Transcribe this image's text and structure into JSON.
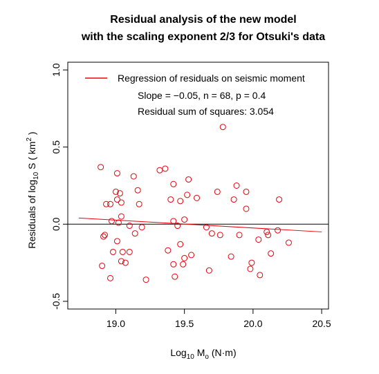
{
  "chart_data": {
    "type": "scatter",
    "title_lines": [
      "Residual analysis of the new model",
      "with the scaling exponent 2/3 for Otsuki's data"
    ],
    "xlabel": {
      "base": "Log",
      "sub": "10",
      "mid": " M",
      "sub2": "o",
      "units": " (N·m)"
    },
    "ylabel": {
      "pre": "Residuals of log",
      "sub": "10",
      "mid": " S ( km",
      "sup": "2",
      "post": " )"
    },
    "xlim": [
      18.65,
      20.55
    ],
    "ylim": [
      -0.55,
      1.05
    ],
    "xticks": [
      19.0,
      19.5,
      20.0,
      20.5
    ],
    "xtick_labels": [
      "19.0",
      "19.5",
      "20.0",
      "20.5"
    ],
    "yticks": [
      -0.5,
      0.0,
      0.5,
      1.0
    ],
    "ytick_labels": [
      "-0.5",
      "0.0",
      "0.5",
      "1.0"
    ],
    "zero_line": 0.0,
    "legend": {
      "position": "top",
      "entry": "Regression of residuals on seismic moment",
      "stats_line1": "Slope = −0.05, n = 68, p = 0.4",
      "stats_line2": "Residual sum of squares:  3.054"
    },
    "regression": {
      "x": [
        18.73,
        20.5
      ],
      "y": [
        0.04,
        -0.05
      ]
    },
    "color": "#e8000b",
    "points": [
      [
        18.89,
        0.37
      ],
      [
        18.9,
        -0.27
      ],
      [
        18.91,
        -0.08
      ],
      [
        18.92,
        -0.07
      ],
      [
        18.93,
        0.13
      ],
      [
        18.96,
        0.13
      ],
      [
        18.96,
        -0.35
      ],
      [
        18.97,
        0.02
      ],
      [
        18.98,
        -0.18
      ],
      [
        19.0,
        0.21
      ],
      [
        19.01,
        0.16
      ],
      [
        19.01,
        -0.11
      ],
      [
        19.01,
        0.33
      ],
      [
        19.02,
        0.01
      ],
      [
        19.03,
        0.2
      ],
      [
        19.04,
        -0.24
      ],
      [
        19.04,
        0.05
      ],
      [
        19.04,
        0.14
      ],
      [
        19.05,
        -0.18
      ],
      [
        19.07,
        -0.25
      ],
      [
        19.1,
        -0.01
      ],
      [
        19.1,
        -0.18
      ],
      [
        19.13,
        0.31
      ],
      [
        19.14,
        -0.06
      ],
      [
        19.16,
        0.22
      ],
      [
        19.17,
        0.13
      ],
      [
        19.19,
        -0.02
      ],
      [
        19.22,
        -0.36
      ],
      [
        19.32,
        0.35
      ],
      [
        19.36,
        0.36
      ],
      [
        19.38,
        -0.17
      ],
      [
        19.4,
        0.16
      ],
      [
        19.42,
        0.02
      ],
      [
        19.42,
        0.26
      ],
      [
        19.42,
        -0.26
      ],
      [
        19.43,
        -0.34
      ],
      [
        19.45,
        -0.01
      ],
      [
        19.47,
        0.15
      ],
      [
        19.47,
        -0.13
      ],
      [
        19.49,
        -0.26
      ],
      [
        19.5,
        0.03
      ],
      [
        19.5,
        -0.22
      ],
      [
        19.52,
        0.19
      ],
      [
        19.53,
        0.29
      ],
      [
        19.55,
        -0.2
      ],
      [
        19.59,
        0.17
      ],
      [
        19.66,
        -0.02
      ],
      [
        19.68,
        -0.3
      ],
      [
        19.7,
        -0.06
      ],
      [
        19.74,
        0.21
      ],
      [
        19.76,
        -0.07
      ],
      [
        19.78,
        0.63
      ],
      [
        19.84,
        -0.21
      ],
      [
        19.86,
        0.16
      ],
      [
        19.88,
        0.25
      ],
      [
        19.9,
        -0.07
      ],
      [
        19.95,
        0.1
      ],
      [
        19.95,
        0.21
      ],
      [
        19.98,
        -0.29
      ],
      [
        19.99,
        -0.25
      ],
      [
        20.04,
        -0.1
      ],
      [
        20.05,
        -0.33
      ],
      [
        20.1,
        -0.05
      ],
      [
        20.11,
        -0.07
      ],
      [
        20.13,
        -0.19
      ],
      [
        20.18,
        -0.04
      ],
      [
        20.19,
        0.16
      ],
      [
        20.26,
        -0.12
      ]
    ]
  }
}
